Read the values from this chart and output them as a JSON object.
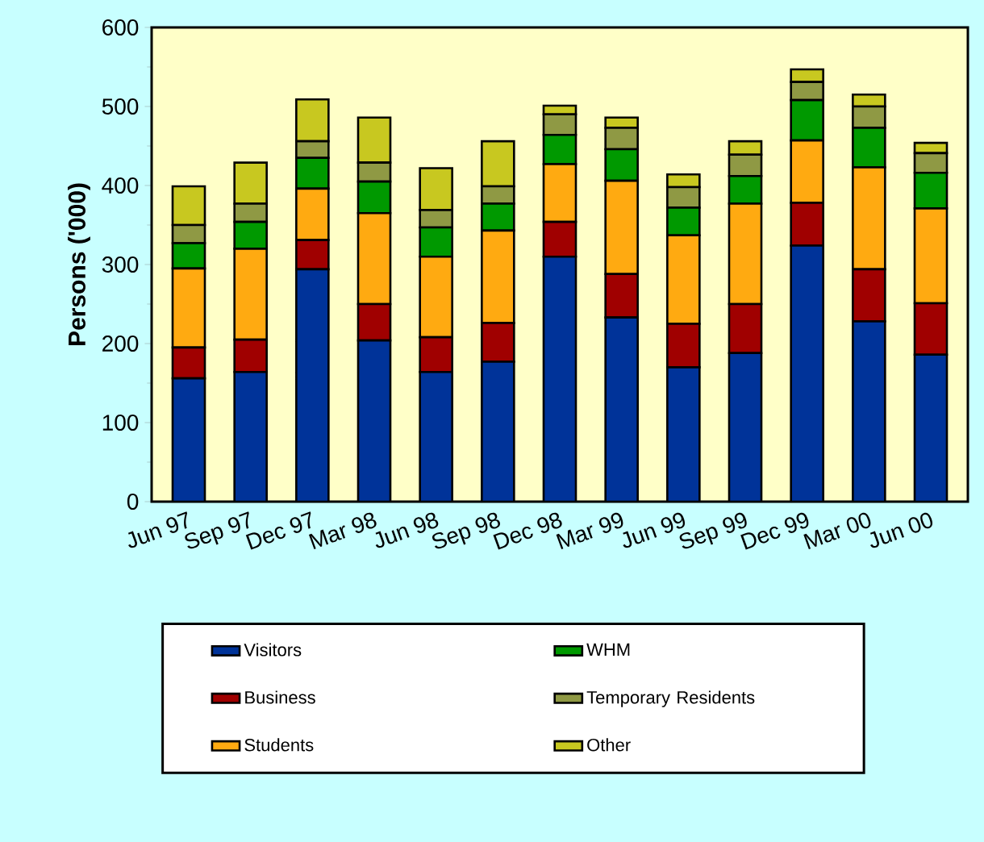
{
  "chart_data": {
    "type": "bar",
    "stacked": true,
    "ylabel": "Persons ('000)",
    "categories": [
      "Jun 97",
      "Sep 97",
      "Dec 97",
      "Mar 98",
      "Jun 98",
      "Sep 98",
      "Dec 98",
      "Mar 99",
      "Jun 99",
      "Sep 99",
      "Dec 99",
      "Mar 00",
      "Jun 00"
    ],
    "series": [
      {
        "name": "Visitors",
        "color": "#003399",
        "values": [
          156,
          164,
          294,
          204,
          164,
          177,
          310,
          233,
          170,
          188,
          324,
          228,
          186
        ]
      },
      {
        "name": "Business",
        "color": "#a00000",
        "values": [
          39,
          41,
          37,
          46,
          44,
          49,
          44,
          55,
          55,
          62,
          54,
          66,
          65
        ]
      },
      {
        "name": "Students",
        "color": "#ffaa11",
        "values": [
          100,
          115,
          65,
          115,
          102,
          117,
          73,
          118,
          112,
          127,
          79,
          129,
          120
        ]
      },
      {
        "name": "WHM",
        "color": "#009900",
        "values": [
          32,
          34,
          39,
          40,
          37,
          34,
          37,
          40,
          35,
          35,
          51,
          50,
          45
        ]
      },
      {
        "name": "Temporary Residents",
        "color": "#8f9944",
        "values": [
          23,
          23,
          21,
          24,
          22,
          22,
          26,
          27,
          26,
          27,
          23,
          27,
          25
        ]
      },
      {
        "name": "Other",
        "color": "#c8c820",
        "values": [
          49,
          52,
          53,
          57,
          53,
          57,
          11,
          13,
          16,
          17,
          16,
          15,
          13
        ]
      }
    ],
    "ylim": [
      0,
      600
    ],
    "yticks": [
      0,
      100,
      200,
      300,
      400,
      500,
      600
    ],
    "grid": false,
    "legend": "bottom"
  }
}
